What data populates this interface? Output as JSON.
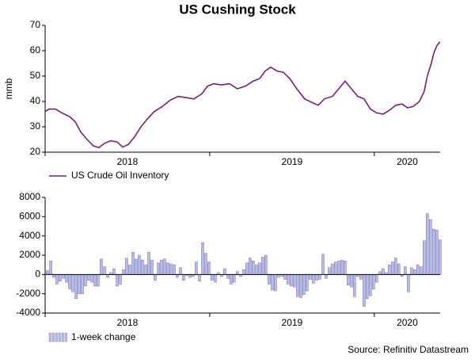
{
  "chart_data": [
    {
      "type": "line",
      "title": "US Cushing Stock",
      "ylabel": "mmb",
      "xlim": [
        2018.0,
        2020.4
      ],
      "xticks": [
        2018,
        2019,
        2020
      ],
      "ylim": [
        20,
        70
      ],
      "yticks": [
        20,
        30,
        40,
        50,
        60,
        70
      ],
      "x": [
        2018.0,
        2018.024,
        2018.063,
        2018.101,
        2018.149,
        2018.183,
        2018.216,
        2018.255,
        2018.293,
        2018.327,
        2018.361,
        2018.399,
        2018.438,
        2018.471,
        2018.505,
        2018.543,
        2018.582,
        2018.62,
        2018.663,
        2018.712,
        2018.76,
        2018.808,
        2018.856,
        2018.904,
        2018.952,
        2018.986,
        2019.024,
        2019.072,
        2019.12,
        2019.168,
        2019.216,
        2019.264,
        2019.303,
        2019.337,
        2019.37,
        2019.409,
        2019.447,
        2019.486,
        2019.529,
        2019.577,
        2019.625,
        2019.659,
        2019.697,
        2019.745,
        2019.784,
        2019.822,
        2019.861,
        2019.899,
        2019.938,
        2019.976,
        2020.014,
        2020.053,
        2020.091,
        2020.13,
        2020.168,
        2020.202,
        2020.236,
        2020.274,
        2020.303,
        2020.322,
        2020.346,
        2020.361,
        2020.38,
        2020.399
      ],
      "series": [
        {
          "name": "US Crude Oil Inventory",
          "color": "#7a1f7a",
          "values": [
            36,
            37,
            37,
            35.5,
            34,
            32,
            28,
            25,
            22.5,
            21.8,
            23.5,
            24.5,
            24,
            22,
            23,
            26,
            30,
            33,
            36,
            38,
            40.5,
            42,
            41.5,
            41,
            43,
            46,
            47,
            46.5,
            47,
            45,
            46,
            48,
            49,
            52,
            53.5,
            52,
            51.5,
            49,
            45,
            41,
            39.5,
            38.5,
            41,
            42,
            45,
            48,
            45,
            42,
            41,
            37,
            35.5,
            35,
            36.5,
            38.5,
            39,
            37.5,
            38,
            40,
            44,
            50,
            55,
            59,
            62,
            63.5
          ]
        }
      ]
    },
    {
      "type": "bar",
      "annotation": "Source: Refinitiv Datastream",
      "xlim": [
        2018.0,
        2020.4
      ],
      "xticks": [
        2018,
        2019,
        2020
      ],
      "ylim": [
        -4000,
        8000
      ],
      "yticks": [
        -4000,
        -2000,
        0,
        2000,
        4000,
        6000,
        8000
      ],
      "x": [
        2018.014,
        2018.034,
        2018.053,
        2018.072,
        2018.091,
        2018.111,
        2018.13,
        2018.149,
        2018.168,
        2018.188,
        2018.207,
        2018.226,
        2018.245,
        2018.264,
        2018.284,
        2018.303,
        2018.322,
        2018.341,
        2018.361,
        2018.38,
        2018.399,
        2018.418,
        2018.438,
        2018.457,
        2018.476,
        2018.495,
        2018.514,
        2018.534,
        2018.553,
        2018.572,
        2018.591,
        2018.611,
        2018.63,
        2018.649,
        2018.668,
        2018.688,
        2018.707,
        2018.726,
        2018.745,
        2018.764,
        2018.784,
        2018.803,
        2018.822,
        2018.841,
        2018.861,
        2018.88,
        2018.899,
        2018.918,
        2018.938,
        2018.957,
        2018.976,
        2018.995,
        2019.014,
        2019.034,
        2019.053,
        2019.072,
        2019.091,
        2019.111,
        2019.13,
        2019.149,
        2019.168,
        2019.188,
        2019.207,
        2019.226,
        2019.245,
        2019.264,
        2019.284,
        2019.303,
        2019.322,
        2019.341,
        2019.361,
        2019.38,
        2019.399,
        2019.418,
        2019.438,
        2019.457,
        2019.476,
        2019.495,
        2019.514,
        2019.534,
        2019.553,
        2019.572,
        2019.591,
        2019.611,
        2019.63,
        2019.649,
        2019.668,
        2019.688,
        2019.707,
        2019.726,
        2019.745,
        2019.764,
        2019.784,
        2019.803,
        2019.822,
        2019.841,
        2019.861,
        2019.88,
        2019.899,
        2019.918,
        2019.938,
        2019.957,
        2019.976,
        2019.995,
        2020.014,
        2020.034,
        2020.053,
        2020.072,
        2020.091,
        2020.111,
        2020.13,
        2020.149,
        2020.168,
        2020.188,
        2020.207,
        2020.226,
        2020.245,
        2020.264,
        2020.284,
        2020.303,
        2020.322,
        2020.341,
        2020.361,
        2020.38,
        2020.399
      ],
      "series": [
        {
          "name": "1-week change",
          "color": "#a9c4ea",
          "values": [
            400,
            1400,
            -300,
            -1000,
            -700,
            -400,
            -800,
            -1500,
            -1800,
            -2500,
            -2000,
            -2000,
            -1200,
            -600,
            -800,
            -1200,
            -1200,
            1600,
            800,
            -300,
            200,
            600,
            -1200,
            -1000,
            500,
            1700,
            1000,
            2300,
            1600,
            2000,
            1500,
            1000,
            2300,
            1500,
            -600,
            1200,
            1500,
            1600,
            1200,
            1100,
            1000,
            -300,
            700,
            -600,
            -100,
            -300,
            -200,
            1300,
            -700,
            3300,
            2200,
            1300,
            -600,
            -800,
            200,
            -200,
            600,
            -400,
            -1000,
            -800,
            300,
            -200,
            500,
            1200,
            1700,
            1400,
            1000,
            1200,
            1800,
            2000,
            -1000,
            -1600,
            -1700,
            -300,
            -200,
            -500,
            -1000,
            -1200,
            -1300,
            -2300,
            -2400,
            -2100,
            -1700,
            -500,
            -900,
            -600,
            -500,
            2100,
            -400,
            700,
            1100,
            1300,
            1400,
            1500,
            1400,
            -1100,
            -1300,
            -2300,
            -200,
            -500,
            -3300,
            -2500,
            -2200,
            -1500,
            -800,
            300,
            600,
            200,
            1000,
            1300,
            1700,
            1100,
            -200,
            800,
            -1800,
            700,
            500,
            1000,
            800,
            3500,
            6300,
            5700,
            4700,
            4600,
            3600
          ]
        }
      ]
    }
  ]
}
